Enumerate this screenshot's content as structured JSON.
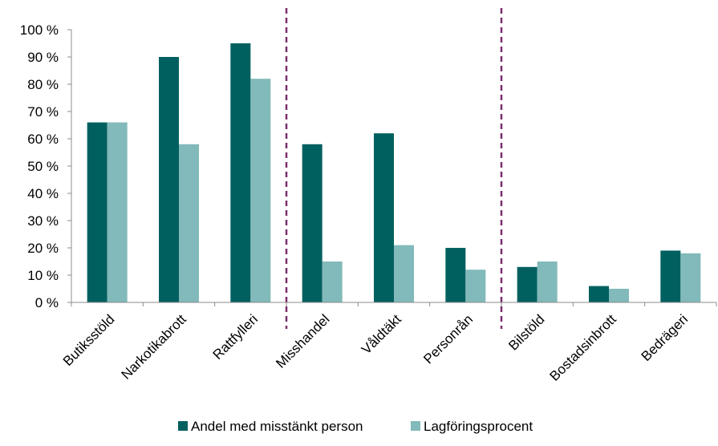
{
  "chart_data": {
    "type": "bar",
    "title": "",
    "xlabel": "",
    "ylabel": "",
    "categories": [
      "Butiksstöld",
      "Narkotikabrott",
      "Rattfylleri",
      "Misshandel",
      "Våldtäkt",
      "Personrån",
      "Bilstöld",
      "Bostadsinbrott",
      "Bedrägeri"
    ],
    "series": [
      {
        "name": "Andel med misstänkt person",
        "color": "#00605f",
        "values": [
          66,
          90,
          95,
          58,
          62,
          20,
          13,
          6,
          19
        ]
      },
      {
        "name": "Lagföringsprocent",
        "color": "#82b9ba",
        "values": [
          66,
          58,
          82,
          15,
          21,
          12,
          15,
          5,
          18
        ]
      }
    ],
    "ylim": [
      0,
      100
    ],
    "y_ticks": [
      0,
      10,
      20,
      30,
      40,
      50,
      60,
      70,
      80,
      90,
      100
    ],
    "y_tick_labels": [
      "0 %",
      "10 %",
      "20 %",
      "30 %",
      "40 %",
      "50 %",
      "60 %",
      "70 %",
      "80 %",
      "90 %",
      "100 %"
    ],
    "grid": false,
    "legend": "bottom",
    "group_separators_after_category": [
      2,
      5
    ],
    "separator_color": "#7b2d6e"
  }
}
